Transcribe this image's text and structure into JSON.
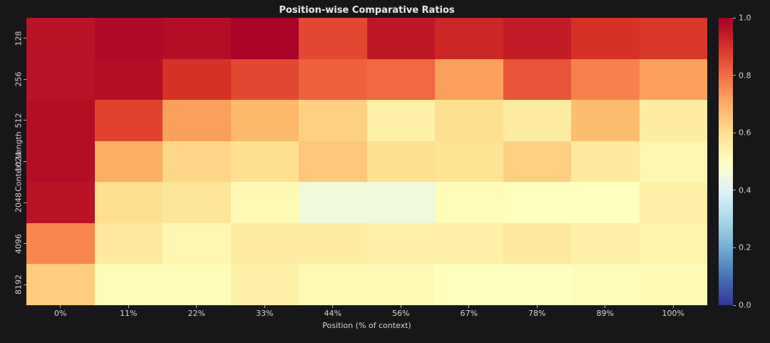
{
  "chart_data": {
    "type": "heatmap",
    "title": "Position-wise Comparative Ratios",
    "xlabel": "Position (% of context)",
    "ylabel": "Context Length",
    "x_ticklabels": [
      "0%",
      "11%",
      "22%",
      "33%",
      "44%",
      "56%",
      "67%",
      "78%",
      "89%",
      "100%"
    ],
    "y_ticklabels": [
      "128",
      "256",
      "512",
      "1024",
      "2048",
      "4096",
      "8192"
    ],
    "values": [
      [
        0.96,
        0.98,
        0.97,
        0.99,
        0.86,
        0.95,
        0.92,
        0.94,
        0.9,
        0.89
      ],
      [
        0.96,
        0.97,
        0.9,
        0.86,
        0.82,
        0.81,
        0.72,
        0.84,
        0.77,
        0.72
      ],
      [
        0.97,
        0.87,
        0.72,
        0.68,
        0.63,
        0.55,
        0.6,
        0.56,
        0.67,
        0.56
      ],
      [
        0.97,
        0.7,
        0.62,
        0.6,
        0.65,
        0.6,
        0.59,
        0.63,
        0.57,
        0.53
      ],
      [
        0.96,
        0.6,
        0.58,
        0.52,
        0.45,
        0.45,
        0.51,
        0.5,
        0.5,
        0.55
      ],
      [
        0.76,
        0.57,
        0.53,
        0.56,
        0.56,
        0.55,
        0.55,
        0.57,
        0.55,
        0.54
      ],
      [
        0.64,
        0.51,
        0.51,
        0.55,
        0.52,
        0.52,
        0.5,
        0.5,
        0.51,
        0.52
      ]
    ],
    "vmin": 0.0,
    "vmax": 1.0,
    "colormap": "RdYlBu_r",
    "colormap_stops": [
      "#313695",
      "#4575b4",
      "#74add1",
      "#abd9e9",
      "#e0f3f8",
      "#ffffbf",
      "#fee090",
      "#fdae61",
      "#f46d43",
      "#d73027",
      "#a50026"
    ],
    "colorbar_ticks": [
      "0.0",
      "0.2",
      "0.4",
      "0.6",
      "0.8",
      "1.0"
    ],
    "legend_position": "right-colorbar",
    "grid": false,
    "background_color": "#171719",
    "text_color": "#d4d4d4"
  }
}
